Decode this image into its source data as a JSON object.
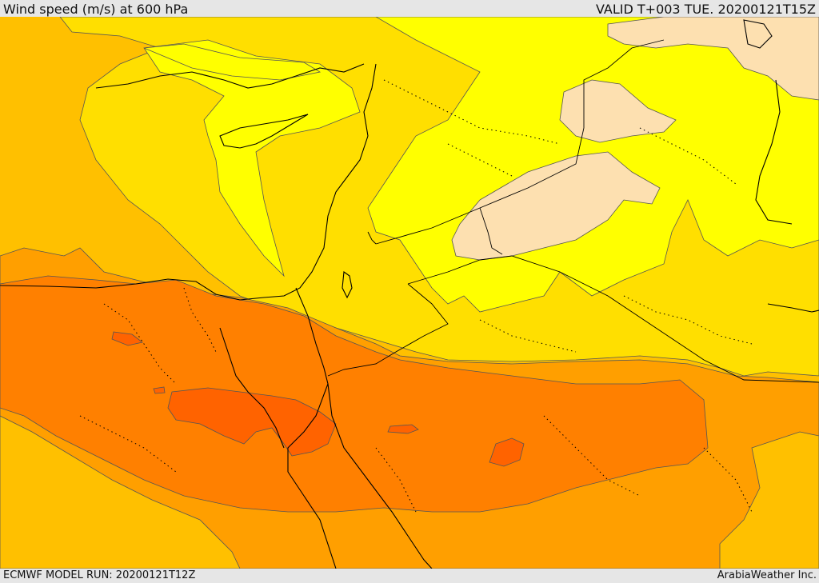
{
  "header": {
    "title": "Wind speed (m/s) at 600 hPa",
    "valid_time": "VALID T+003 TUE. 20200121T15Z"
  },
  "footer": {
    "model_run": "ECMWF MODEL RUN: 20200121T12Z",
    "credit": "ArabiaWeather Inc."
  },
  "map": {
    "variable": "wind speed",
    "pressure_level": "600 hPa",
    "shading_colors": {
      "lowest": "#fde0b0",
      "low": "#ffff00",
      "moderate": "#ffdf00",
      "elevated": "#ffc000",
      "high": "#ff9f00",
      "higher": "#ff8000",
      "highest": "#ff6300"
    },
    "line_colors": {
      "coastline": "#000000",
      "borders_dotted": "#000000",
      "contour": "#555555"
    }
  }
}
